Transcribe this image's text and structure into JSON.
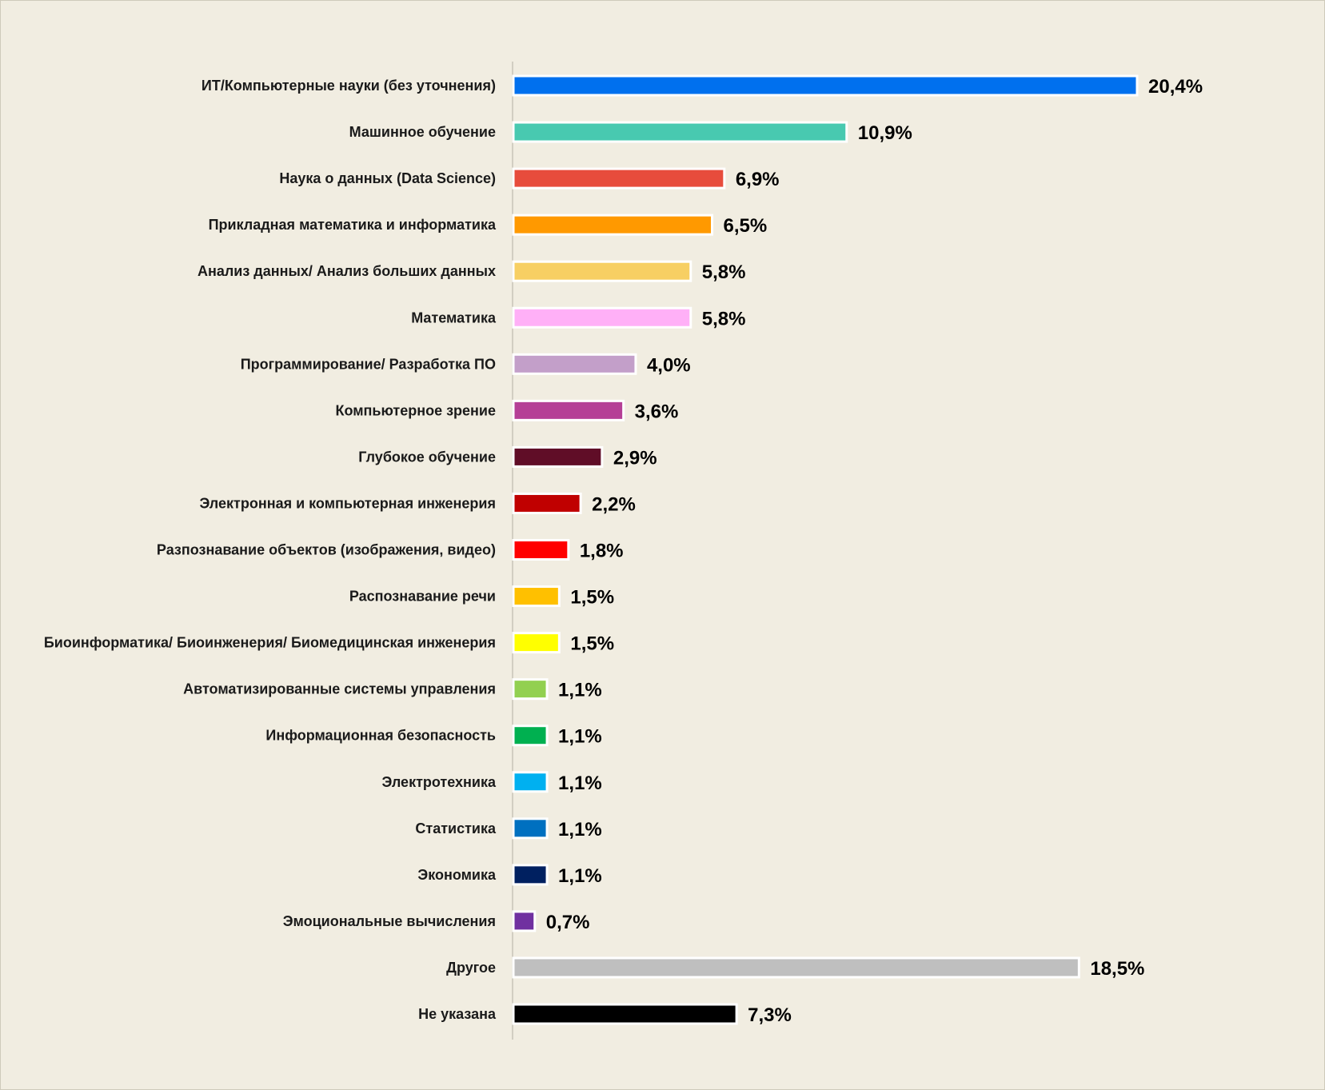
{
  "chart_data": {
    "type": "bar",
    "orientation": "horizontal",
    "categories": [
      "ИТ/Компьютерные науки (без уточнения)",
      "Машинное обучение",
      "Наука о данных (Data Science)",
      "Прикладная математика и информатика",
      "Анализ данных/ Анализ больших данных",
      "Математика",
      "Программирование/ Разработка ПО",
      "Компьютерное зрение",
      "Глубокое обучение",
      "Электронная и компьютерная инженерия",
      "Разпознавание объектов (изображения, видео)",
      "Распознавание речи",
      "Биоинформатика/ Биоинженерия/ Биомедицинская инженерия",
      "Автоматизированные системы управления",
      "Информационная безопасность",
      "Электротехника",
      "Статистика",
      "Экономика",
      "Эмоциональные вычисления",
      "Другое",
      "Не указана"
    ],
    "values": [
      20.4,
      10.9,
      6.9,
      6.5,
      5.8,
      5.8,
      4.0,
      3.6,
      2.9,
      2.2,
      1.8,
      1.5,
      1.5,
      1.1,
      1.1,
      1.1,
      1.1,
      1.1,
      0.7,
      18.5,
      7.3
    ],
    "value_labels": [
      "20,4%",
      "10,9%",
      "6,9%",
      "6,5%",
      "5,8%",
      "5,8%",
      "4,0%",
      "3,6%",
      "2,9%",
      "2,2%",
      "1,8%",
      "1,5%",
      "1,5%",
      "1,1%",
      "1,1%",
      "1,1%",
      "1,1%",
      "1,1%",
      "0,7%",
      "18,5%",
      "7,3%"
    ],
    "colors": [
      "#0070ee",
      "#48c9b0",
      "#e74c3c",
      "#ff9900",
      "#f7cf63",
      "#ffb0f7",
      "#c39fc9",
      "#b53f96",
      "#600d27",
      "#c00000",
      "#ff0000",
      "#ffc000",
      "#ffff00",
      "#92d050",
      "#00b050",
      "#00b0f0",
      "#0070c0",
      "#002060",
      "#7030a0",
      "#bfbfbf",
      "#000000"
    ],
    "bar_outline_color": "#ffffff",
    "background_color": "#f1ede1",
    "title": "",
    "xlabel": "",
    "ylabel": "",
    "xlim": [
      0,
      20.4
    ],
    "grid": false,
    "legend": "none"
  }
}
